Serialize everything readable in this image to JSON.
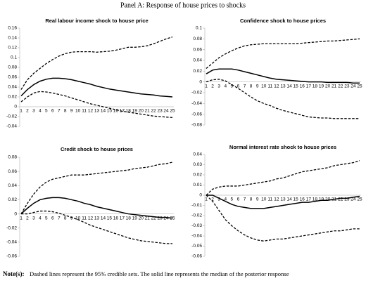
{
  "title": "Panel A: Response of house prices to shocks",
  "note": {
    "label": "Note(s):",
    "text": "Dashed lines represent the 95% credible sets. The solid line represents the median of the posterior response"
  },
  "chart_data": [
    {
      "type": "line",
      "title": "Real labour income shock to house price",
      "x": [
        1,
        2,
        3,
        4,
        5,
        6,
        7,
        8,
        9,
        10,
        11,
        12,
        13,
        14,
        15,
        16,
        17,
        18,
        19,
        20,
        21,
        22,
        23,
        24,
        25
      ],
      "ylim": [
        -0.04,
        0.16
      ],
      "yticks": [
        -0.04,
        -0.02,
        0,
        0.02,
        0.04,
        0.06,
        0.08,
        0.1,
        0.12,
        0.14,
        0.16
      ],
      "series": [
        {
          "color": "#000000",
          "dash": true,
          "values": [
            0.035,
            0.055,
            0.068,
            0.078,
            0.088,
            0.096,
            0.103,
            0.108,
            0.111,
            0.112,
            0.112,
            0.112,
            0.111,
            0.112,
            0.113,
            0.115,
            0.118,
            0.121,
            0.121,
            0.122,
            0.124,
            0.128,
            0.133,
            0.138,
            0.142
          ]
        },
        {
          "color": "#000000",
          "dash": false,
          "values": [
            0.022,
            0.035,
            0.045,
            0.052,
            0.056,
            0.058,
            0.058,
            0.057,
            0.055,
            0.052,
            0.049,
            0.046,
            0.042,
            0.039,
            0.036,
            0.034,
            0.032,
            0.03,
            0.028,
            0.026,
            0.025,
            0.024,
            0.022,
            0.021,
            0.02
          ]
        },
        {
          "color": "#000000",
          "dash": true,
          "values": [
            0.01,
            0.02,
            0.028,
            0.031,
            0.03,
            0.028,
            0.025,
            0.022,
            0.018,
            0.014,
            0.01,
            0.006,
            0.003,
            0,
            -0.003,
            -0.006,
            -0.009,
            -0.011,
            -0.013,
            -0.015,
            -0.017,
            -0.019,
            -0.02,
            -0.021,
            -0.022
          ]
        }
      ]
    },
    {
      "type": "line",
      "title": "Confidence shock to house prices",
      "x": [
        1,
        2,
        3,
        4,
        5,
        6,
        7,
        8,
        9,
        10,
        11,
        12,
        13,
        14,
        15,
        16,
        17,
        18,
        19,
        20,
        21,
        22,
        23,
        24,
        25
      ],
      "ylim": [
        -0.08,
        0.1
      ],
      "yticks": [
        -0.08,
        -0.06,
        -0.04,
        -0.02,
        0,
        0.02,
        0.04,
        0.06,
        0.08,
        0.1
      ],
      "series": [
        {
          "color": "#000000",
          "dash": true,
          "values": [
            0.025,
            0.035,
            0.045,
            0.052,
            0.058,
            0.063,
            0.067,
            0.069,
            0.07,
            0.071,
            0.071,
            0.071,
            0.071,
            0.071,
            0.071,
            0.072,
            0.073,
            0.074,
            0.075,
            0.076,
            0.076,
            0.077,
            0.078,
            0.079,
            0.08
          ]
        },
        {
          "color": "#000000",
          "dash": false,
          "values": [
            0.015,
            0.022,
            0.024,
            0.024,
            0.024,
            0.022,
            0.019,
            0.016,
            0.013,
            0.01,
            0.007,
            0.005,
            0.004,
            0.003,
            0.002,
            0.001,
            0,
            0,
            0,
            -0.001,
            -0.001,
            -0.001,
            -0.001,
            -0.002,
            -0.002
          ]
        },
        {
          "color": "#000000",
          "dash": true,
          "values": [
            0,
            0.004,
            0.005,
            0.002,
            -0.005,
            -0.012,
            -0.02,
            -0.028,
            -0.035,
            -0.04,
            -0.044,
            -0.049,
            -0.053,
            -0.056,
            -0.059,
            -0.062,
            -0.065,
            -0.066,
            -0.067,
            -0.067,
            -0.068,
            -0.068,
            -0.068,
            -0.068,
            -0.068
          ]
        }
      ]
    },
    {
      "type": "line",
      "title": "Credit shock to house prices",
      "x": [
        1,
        2,
        3,
        4,
        5,
        6,
        7,
        8,
        9,
        10,
        11,
        12,
        13,
        14,
        15,
        16,
        17,
        18,
        19,
        20,
        21,
        22,
        23,
        24,
        25
      ],
      "ylim": [
        -0.06,
        0.08
      ],
      "yticks": [
        -0.06,
        -0.04,
        -0.02,
        0,
        0.02,
        0.04,
        0.06,
        0.08
      ],
      "series": [
        {
          "color": "#000000",
          "dash": true,
          "values": [
            0,
            0.015,
            0.028,
            0.038,
            0.045,
            0.049,
            0.051,
            0.053,
            0.055,
            0.055,
            0.055,
            0.056,
            0.057,
            0.058,
            0.059,
            0.06,
            0.061,
            0.062,
            0.064,
            0.065,
            0.066,
            0.068,
            0.07,
            0.071,
            0.073
          ]
        },
        {
          "color": "#000000",
          "dash": false,
          "values": [
            0,
            0.008,
            0.015,
            0.02,
            0.022,
            0.023,
            0.023,
            0.022,
            0.02,
            0.018,
            0.015,
            0.013,
            0.01,
            0.008,
            0.006,
            0.004,
            0.002,
            0,
            -0.001,
            -0.002,
            -0.003,
            -0.004,
            -0.005,
            -0.005,
            -0.006
          ]
        },
        {
          "color": "#000000",
          "dash": true,
          "values": [
            0,
            0,
            0.002,
            0.004,
            0.004,
            0.003,
            0.001,
            -0.002,
            -0.005,
            -0.008,
            -0.012,
            -0.016,
            -0.019,
            -0.022,
            -0.025,
            -0.028,
            -0.031,
            -0.034,
            -0.036,
            -0.038,
            -0.039,
            -0.04,
            -0.041,
            -0.042,
            -0.042
          ]
        }
      ]
    },
    {
      "type": "line",
      "title": "Normal interest rate shock to house prices",
      "x": [
        1,
        2,
        3,
        4,
        5,
        6,
        7,
        8,
        9,
        10,
        11,
        12,
        13,
        14,
        15,
        16,
        17,
        18,
        19,
        20,
        21,
        22,
        23,
        24,
        25
      ],
      "ylim": [
        -0.06,
        0.04
      ],
      "yticks": [
        -0.06,
        -0.05,
        -0.04,
        -0.03,
        -0.02,
        -0.01,
        0,
        0.01,
        0.02,
        0.03,
        0.04
      ],
      "series": [
        {
          "color": "#000000",
          "dash": true,
          "values": [
            0,
            0.006,
            0.008,
            0.009,
            0.009,
            0.009,
            0.01,
            0.011,
            0.012,
            0.013,
            0.014,
            0.016,
            0.017,
            0.019,
            0.021,
            0.023,
            0.024,
            0.025,
            0.026,
            0.027,
            0.029,
            0.03,
            0.031,
            0.032,
            0.034
          ]
        },
        {
          "color": "#000000",
          "dash": false,
          "values": [
            0,
            0,
            -0.003,
            -0.006,
            -0.009,
            -0.011,
            -0.012,
            -0.013,
            -0.013,
            -0.013,
            -0.012,
            -0.011,
            -0.01,
            -0.009,
            -0.008,
            -0.007,
            -0.007,
            -0.006,
            -0.005,
            -0.005,
            -0.004,
            -0.003,
            -0.003,
            -0.002,
            -0.001
          ]
        },
        {
          "color": "#000000",
          "dash": true,
          "values": [
            0,
            -0.006,
            -0.015,
            -0.024,
            -0.03,
            -0.035,
            -0.039,
            -0.042,
            -0.044,
            -0.045,
            -0.044,
            -0.043,
            -0.043,
            -0.042,
            -0.041,
            -0.04,
            -0.039,
            -0.038,
            -0.037,
            -0.036,
            -0.035,
            -0.035,
            -0.034,
            -0.033,
            -0.033
          ]
        }
      ]
    }
  ]
}
